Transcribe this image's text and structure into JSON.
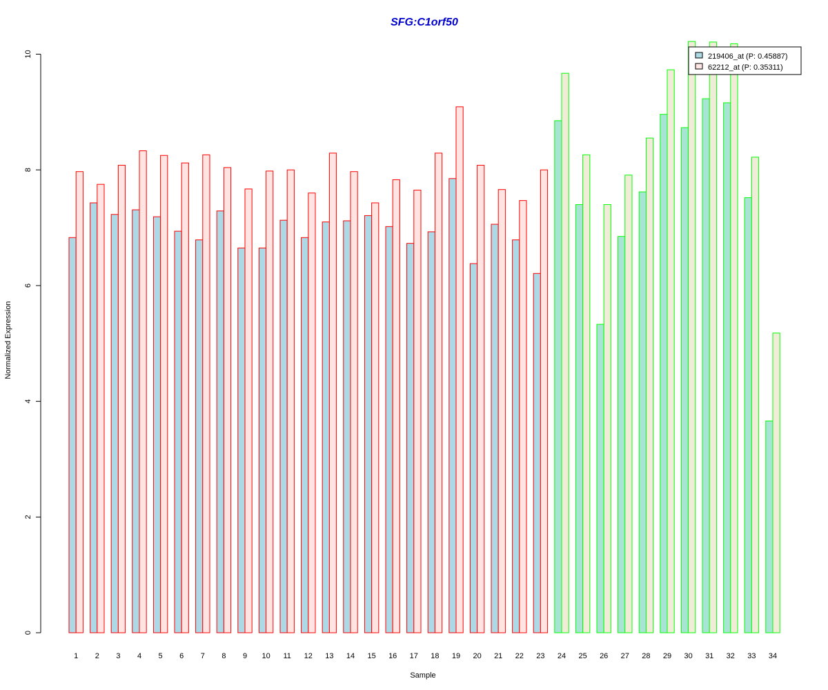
{
  "chart_data": {
    "type": "bar",
    "title": "SFG:C1orf50",
    "xlabel": "Sample",
    "ylabel": "Normalized Expression",
    "ylim": [
      0,
      10
    ],
    "yticks": [
      0,
      2,
      4,
      6,
      8,
      10
    ],
    "grid": false,
    "legend_position": "top-right",
    "categories": [
      "1",
      "2",
      "3",
      "4",
      "5",
      "6",
      "7",
      "8",
      "9",
      "10",
      "11",
      "12",
      "13",
      "14",
      "15",
      "16",
      "17",
      "18",
      "19",
      "20",
      "21",
      "22",
      "23",
      "24",
      "25",
      "26",
      "27",
      "28",
      "29",
      "30",
      "31",
      "32",
      "33",
      "34"
    ],
    "group_sizes": [
      23,
      11
    ],
    "series": [
      {
        "name": "219406_at (P: 0.45887)",
        "values": [
          6.83,
          7.43,
          7.23,
          7.31,
          7.19,
          6.94,
          6.79,
          7.29,
          6.65,
          6.65,
          7.13,
          6.83,
          7.1,
          7.12,
          7.21,
          7.02,
          6.73,
          6.93,
          7.85,
          6.38,
          7.06,
          6.79,
          6.21,
          8.85,
          7.4,
          5.33,
          6.85,
          7.62,
          8.96,
          8.73,
          9.23,
          9.16,
          7.52,
          3.66
        ]
      },
      {
        "name": "62212_at (P: 0.35311)",
        "values": [
          7.97,
          7.75,
          8.08,
          8.33,
          8.25,
          8.12,
          8.26,
          8.04,
          7.67,
          7.98,
          8.0,
          7.6,
          8.29,
          7.97,
          7.43,
          7.83,
          7.65,
          8.29,
          9.09,
          8.08,
          7.66,
          7.47,
          8.0,
          9.67,
          8.26,
          7.4,
          7.91,
          8.55,
          9.73,
          10.22,
          10.21,
          10.18,
          8.22,
          5.18
        ]
      }
    ]
  },
  "colors": {
    "title": "#0000cc",
    "series_fill": [
      "#add8e6",
      "#ffe4e1"
    ],
    "group_fill": [
      [
        "#add8e6",
        "#ffe4e1"
      ],
      [
        "#a8e4d4",
        "#f0ecd8"
      ]
    ],
    "group_border": [
      "#ff0000",
      "#00ff00"
    ]
  }
}
